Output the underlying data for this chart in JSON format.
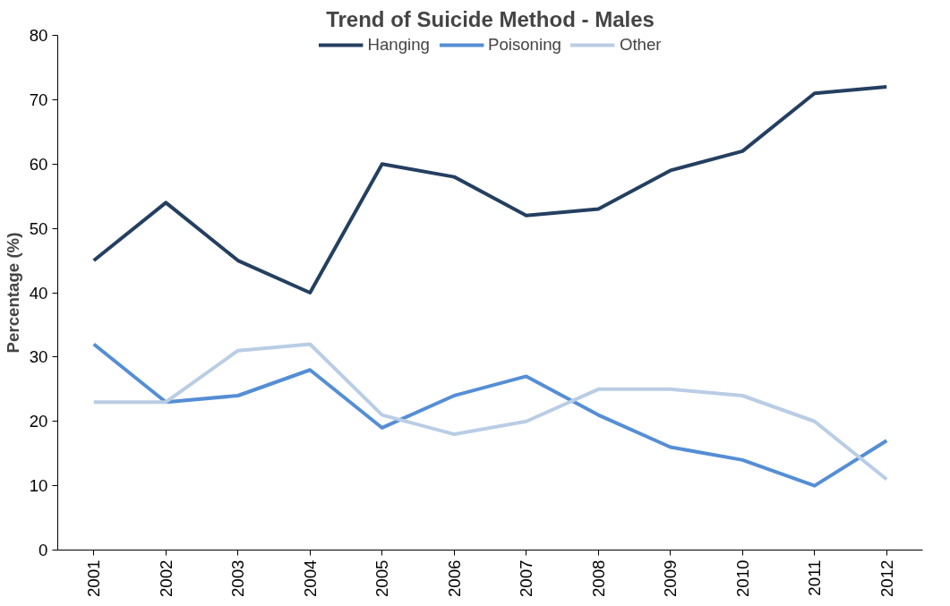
{
  "chart_data": {
    "type": "line",
    "title": "Trend of Suicide Method - Males",
    "ylabel": "Percentage (%)",
    "categories": [
      "2001",
      "2002",
      "2003",
      "2004",
      "2005",
      "2006",
      "2007",
      "2008",
      "2009",
      "2010",
      "2011",
      "2012"
    ],
    "ylim": [
      0,
      80
    ],
    "yticks": [
      0,
      10,
      20,
      30,
      40,
      50,
      60,
      70,
      80
    ],
    "grid": false,
    "legend": "top",
    "marker": "none",
    "line_style": "solid",
    "series": [
      {
        "name": "Hanging",
        "color": "#243f60",
        "values": [
          45,
          54,
          45,
          40,
          60,
          58,
          52,
          53,
          59,
          62,
          71,
          72
        ]
      },
      {
        "name": "Poisoning",
        "color": "#558ed5",
        "values": [
          32,
          23,
          24,
          28,
          19,
          24,
          27,
          21,
          16,
          14,
          10,
          17
        ]
      },
      {
        "name": "Other",
        "color": "#b9cde5",
        "values": [
          23,
          23,
          31,
          32,
          21,
          18,
          20,
          25,
          25,
          24,
          20,
          11
        ]
      }
    ]
  }
}
